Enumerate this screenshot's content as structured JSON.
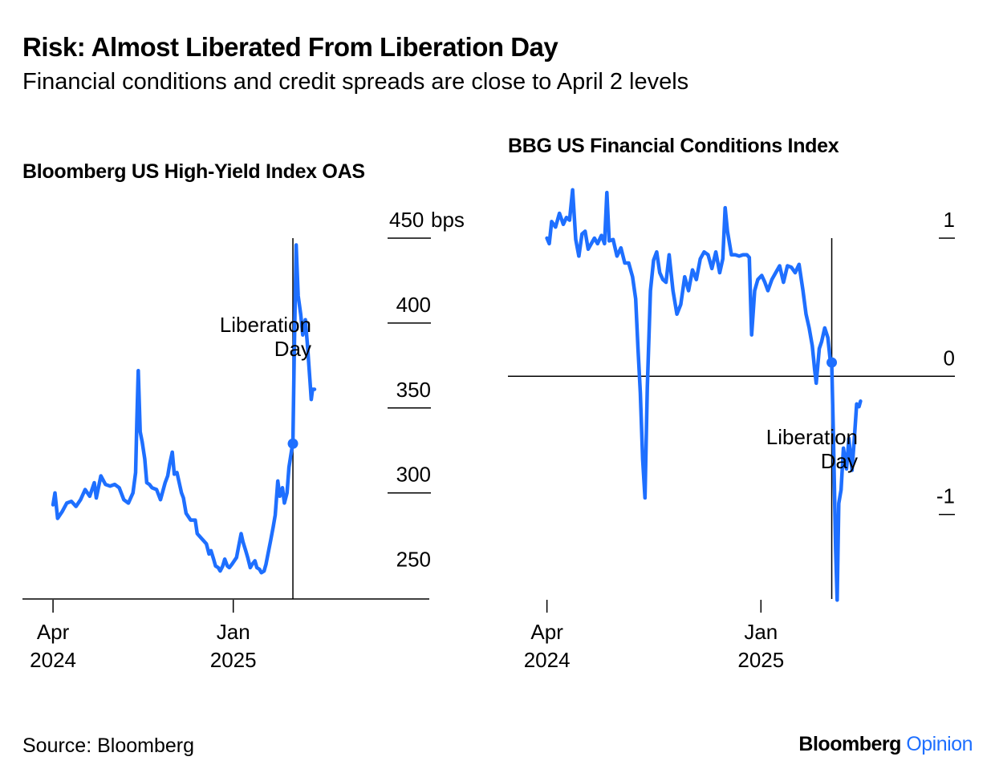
{
  "header": {
    "title": "Risk: Almost Liberated From Liberation Day",
    "subtitle": "Financial conditions and credit spreads are close to April 2 levels"
  },
  "footer": {
    "source": "Source: Bloomberg",
    "brand_primary": "Bloomberg",
    "brand_secondary": "Opinion"
  },
  "colors": {
    "series": "#1e6fff",
    "axis": "#000000"
  },
  "chart_data": [
    {
      "type": "line",
      "title": "Bloomberg US High-Yield Index OAS",
      "xlabel": "",
      "ylabel": "",
      "x_ticks": [
        {
          "date": "2024-04-01",
          "line1": "Apr",
          "line2": "2024"
        },
        {
          "date": "2025-01-01",
          "line1": "Jan",
          "line2": "2025"
        }
      ],
      "y_ticks": [
        {
          "value": 250,
          "label": "250"
        },
        {
          "value": 300,
          "label": "300"
        },
        {
          "value": 350,
          "label": "350"
        },
        {
          "value": 400,
          "label": "400"
        },
        {
          "value": 450,
          "label": "450"
        }
      ],
      "y_unit": "bps",
      "xlim": [
        "2024-03-27",
        "2025-06-23"
      ],
      "ylim": [
        238,
        450
      ],
      "grid": false,
      "annotation": {
        "date": "2025-04-02",
        "value": 329,
        "text_lines": [
          "Liberation",
          "Day"
        ]
      },
      "series": [
        {
          "points": [
            [
              "2024-04-01",
              293
            ],
            [
              "2024-04-04",
              300
            ],
            [
              "2024-04-08",
              285
            ],
            [
              "2024-04-15",
              289
            ],
            [
              "2024-04-22",
              294
            ],
            [
              "2024-04-29",
              295
            ],
            [
              "2024-05-06",
              292
            ],
            [
              "2024-05-13",
              296
            ],
            [
              "2024-05-20",
              302
            ],
            [
              "2024-05-27",
              298
            ],
            [
              "2024-06-03",
              306
            ],
            [
              "2024-06-06",
              297
            ],
            [
              "2024-06-13",
              310
            ],
            [
              "2024-06-20",
              305
            ],
            [
              "2024-06-27",
              304
            ],
            [
              "2024-07-04",
              305
            ],
            [
              "2024-07-11",
              303
            ],
            [
              "2024-07-18",
              296
            ],
            [
              "2024-07-25",
              294
            ],
            [
              "2024-08-01",
              300
            ],
            [
              "2024-08-05",
              312
            ],
            [
              "2024-08-07",
              343
            ],
            [
              "2024-08-09",
              372
            ],
            [
              "2024-08-12",
              336
            ],
            [
              "2024-08-15",
              330
            ],
            [
              "2024-08-19",
              320
            ],
            [
              "2024-08-22",
              306
            ],
            [
              "2024-08-26",
              305
            ],
            [
              "2024-08-30",
              303
            ],
            [
              "2024-09-06",
              302
            ],
            [
              "2024-09-12",
              296
            ],
            [
              "2024-09-19",
              306
            ],
            [
              "2024-09-23",
              310
            ],
            [
              "2024-09-26",
              317
            ],
            [
              "2024-09-30",
              324
            ],
            [
              "2024-10-03",
              311
            ],
            [
              "2024-10-07",
              312
            ],
            [
              "2024-10-14",
              300
            ],
            [
              "2024-10-17",
              297
            ],
            [
              "2024-10-21",
              288
            ],
            [
              "2024-10-28",
              284
            ],
            [
              "2024-11-04",
              284
            ],
            [
              "2024-11-07",
              276
            ],
            [
              "2024-11-14",
              273
            ],
            [
              "2024-11-21",
              270
            ],
            [
              "2024-11-25",
              264
            ],
            [
              "2024-11-28",
              266
            ],
            [
              "2024-12-02",
              261
            ],
            [
              "2024-12-05",
              257
            ],
            [
              "2024-12-09",
              256
            ],
            [
              "2024-12-12",
              254
            ],
            [
              "2024-12-16",
              257
            ],
            [
              "2024-12-19",
              261
            ],
            [
              "2024-12-23",
              257
            ],
            [
              "2024-12-26",
              256
            ],
            [
              "2024-12-30",
              258
            ],
            [
              "2025-01-06",
              262
            ],
            [
              "2025-01-09",
              268
            ],
            [
              "2025-01-13",
              276
            ],
            [
              "2025-01-16",
              271
            ],
            [
              "2025-01-20",
              266
            ],
            [
              "2025-01-23",
              262
            ],
            [
              "2025-01-27",
              256
            ],
            [
              "2025-01-30",
              258
            ],
            [
              "2025-02-03",
              260
            ],
            [
              "2025-02-06",
              256
            ],
            [
              "2025-02-10",
              255
            ],
            [
              "2025-02-13",
              253
            ],
            [
              "2025-02-17",
              254
            ],
            [
              "2025-02-20",
              258
            ],
            [
              "2025-02-24",
              266
            ],
            [
              "2025-02-27",
              272
            ],
            [
              "2025-03-03",
              280
            ],
            [
              "2025-03-06",
              287
            ],
            [
              "2025-03-10",
              307
            ],
            [
              "2025-03-13",
              298
            ],
            [
              "2025-03-17",
              303
            ],
            [
              "2025-03-20",
              294
            ],
            [
              "2025-03-24",
              300
            ],
            [
              "2025-03-27",
              315
            ],
            [
              "2025-03-31",
              325
            ],
            [
              "2025-04-02",
              329
            ],
            [
              "2025-04-04",
              382
            ],
            [
              "2025-04-07",
              446
            ],
            [
              "2025-04-08",
              436
            ],
            [
              "2025-04-10",
              416
            ],
            [
              "2025-04-14",
              405
            ],
            [
              "2025-04-17",
              393
            ],
            [
              "2025-04-21",
              402
            ],
            [
              "2025-04-24",
              388
            ],
            [
              "2025-04-28",
              366
            ],
            [
              "2025-04-30",
              355
            ],
            [
              "2025-05-02",
              361
            ],
            [
              "2025-05-05",
              361
            ]
          ]
        }
      ]
    },
    {
      "type": "line",
      "title": "BBG US Financial Conditions Index",
      "xlabel": "",
      "ylabel": "",
      "x_ticks": [
        {
          "date": "2024-04-01",
          "line1": "Apr",
          "line2": "2024"
        },
        {
          "date": "2025-01-01",
          "line1": "Jan",
          "line2": "2025"
        }
      ],
      "y_ticks": [
        {
          "value": 1,
          "label": "1"
        },
        {
          "value": 0,
          "label": "0"
        },
        {
          "value": -1,
          "label": "-1"
        }
      ],
      "xlim": [
        "2024-03-20",
        "2025-06-25"
      ],
      "ylim": [
        -1.6,
        1
      ],
      "grid": false,
      "annotation": {
        "date": "2025-04-02",
        "value": 0.1,
        "text_lines": [
          "Liberation",
          "Day"
        ]
      },
      "series": [
        {
          "points": [
            [
              "2024-04-01",
              1.0
            ],
            [
              "2024-04-04",
              0.96
            ],
            [
              "2024-04-07",
              1.12
            ],
            [
              "2024-04-12",
              1.08
            ],
            [
              "2024-04-17",
              1.18
            ],
            [
              "2024-04-22",
              1.1
            ],
            [
              "2024-04-26",
              1.15
            ],
            [
              "2024-04-30",
              1.13
            ],
            [
              "2024-05-04",
              1.35
            ],
            [
              "2024-05-08",
              0.99
            ],
            [
              "2024-05-12",
              0.87
            ],
            [
              "2024-05-16",
              1.03
            ],
            [
              "2024-05-20",
              1.05
            ],
            [
              "2024-05-24",
              0.92
            ],
            [
              "2024-05-28",
              0.96
            ],
            [
              "2024-06-01",
              1.0
            ],
            [
              "2024-06-05",
              0.96
            ],
            [
              "2024-06-10",
              1.02
            ],
            [
              "2024-06-14",
              0.96
            ],
            [
              "2024-06-17",
              1.33
            ],
            [
              "2024-06-20",
              0.98
            ],
            [
              "2024-06-25",
              0.99
            ],
            [
              "2024-06-30",
              0.87
            ],
            [
              "2024-07-05",
              0.93
            ],
            [
              "2024-07-10",
              0.82
            ],
            [
              "2024-07-15",
              0.82
            ],
            [
              "2024-07-20",
              0.72
            ],
            [
              "2024-07-24",
              0.56
            ],
            [
              "2024-07-27",
              0.2
            ],
            [
              "2024-07-30",
              -0.12
            ],
            [
              "2024-08-02",
              -0.6
            ],
            [
              "2024-08-05",
              -0.88
            ],
            [
              "2024-08-08",
              -0.08
            ],
            [
              "2024-08-12",
              0.62
            ],
            [
              "2024-08-16",
              0.84
            ],
            [
              "2024-08-20",
              0.9
            ],
            [
              "2024-08-24",
              0.75
            ],
            [
              "2024-08-28",
              0.7
            ],
            [
              "2024-09-01",
              0.68
            ],
            [
              "2024-09-05",
              0.88
            ],
            [
              "2024-09-10",
              0.62
            ],
            [
              "2024-09-15",
              0.45
            ],
            [
              "2024-09-20",
              0.52
            ],
            [
              "2024-09-25",
              0.72
            ],
            [
              "2024-09-30",
              0.62
            ],
            [
              "2024-10-05",
              0.77
            ],
            [
              "2024-10-10",
              0.7
            ],
            [
              "2024-10-15",
              0.85
            ],
            [
              "2024-10-20",
              0.9
            ],
            [
              "2024-10-25",
              0.88
            ],
            [
              "2024-10-30",
              0.78
            ],
            [
              "2024-11-04",
              0.9
            ],
            [
              "2024-11-09",
              0.75
            ],
            [
              "2024-11-13",
              0.85
            ],
            [
              "2024-11-16",
              1.22
            ],
            [
              "2024-11-19",
              1.05
            ],
            [
              "2024-11-24",
              0.88
            ],
            [
              "2024-11-29",
              0.88
            ],
            [
              "2024-12-04",
              0.87
            ],
            [
              "2024-12-09",
              0.88
            ],
            [
              "2024-12-14",
              0.88
            ],
            [
              "2024-12-17",
              0.86
            ],
            [
              "2024-12-20",
              0.3
            ],
            [
              "2024-12-24",
              0.62
            ],
            [
              "2024-12-28",
              0.7
            ],
            [
              "2025-01-02",
              0.73
            ],
            [
              "2025-01-06",
              0.68
            ],
            [
              "2025-01-10",
              0.62
            ],
            [
              "2025-01-15",
              0.7
            ],
            [
              "2025-01-20",
              0.75
            ],
            [
              "2025-01-25",
              0.8
            ],
            [
              "2025-01-30",
              0.68
            ],
            [
              "2025-02-04",
              0.8
            ],
            [
              "2025-02-09",
              0.79
            ],
            [
              "2025-02-14",
              0.75
            ],
            [
              "2025-02-19",
              0.81
            ],
            [
              "2025-02-24",
              0.62
            ],
            [
              "2025-02-28",
              0.45
            ],
            [
              "2025-03-04",
              0.35
            ],
            [
              "2025-03-08",
              0.22
            ],
            [
              "2025-03-11",
              0.05
            ],
            [
              "2025-03-13",
              -0.05
            ],
            [
              "2025-03-17",
              0.2
            ],
            [
              "2025-03-20",
              0.25
            ],
            [
              "2025-03-24",
              0.35
            ],
            [
              "2025-03-28",
              0.28
            ],
            [
              "2025-03-31",
              0.12
            ],
            [
              "2025-04-02",
              0.1
            ],
            [
              "2025-04-04",
              -0.4
            ],
            [
              "2025-04-07",
              -1.25
            ],
            [
              "2025-04-09",
              -1.62
            ],
            [
              "2025-04-11",
              -0.92
            ],
            [
              "2025-04-14",
              -0.82
            ],
            [
              "2025-04-17",
              -0.52
            ],
            [
              "2025-04-21",
              -0.67
            ],
            [
              "2025-04-24",
              -0.45
            ],
            [
              "2025-04-28",
              -0.68
            ],
            [
              "2025-05-01",
              -0.45
            ],
            [
              "2025-05-04",
              -0.2
            ],
            [
              "2025-05-07",
              -0.22
            ],
            [
              "2025-05-09",
              -0.18
            ]
          ]
        }
      ]
    }
  ]
}
